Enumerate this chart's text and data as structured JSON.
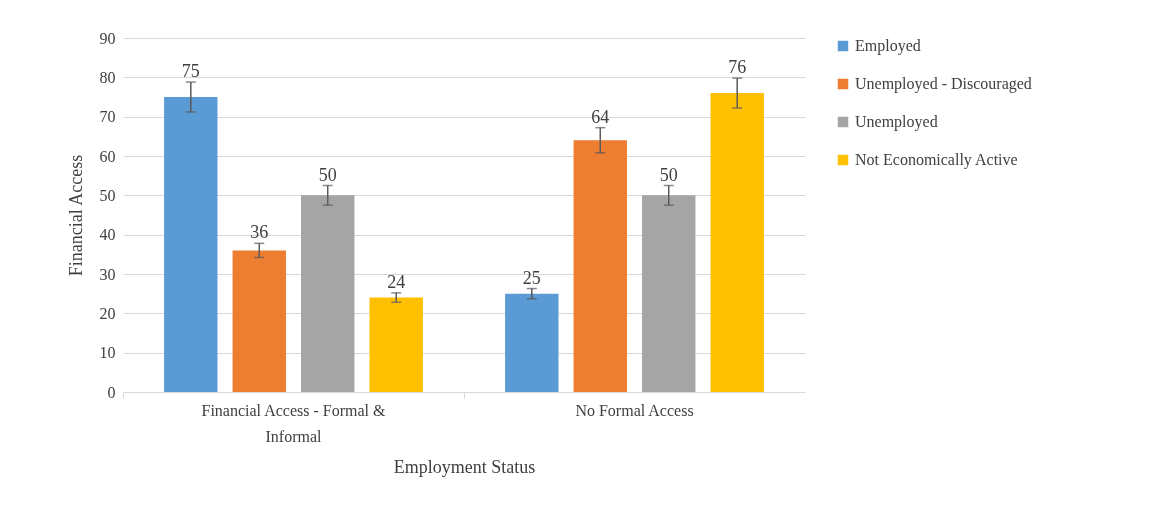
{
  "chart_data": {
    "type": "bar",
    "xlabel": "Employment Status",
    "ylabel": "Financial Access",
    "categories": [
      "Financial Access - Formal & Informal",
      "No Formal Access"
    ],
    "series": [
      {
        "name": "Employed",
        "color": "#5b9bd5",
        "values": [
          75,
          25
        ],
        "errors": [
          3.8,
          1.3
        ]
      },
      {
        "name": "Unemployed - Discouraged",
        "color": "#ed7d31",
        "values": [
          36,
          64
        ],
        "errors": [
          1.8,
          3.2
        ]
      },
      {
        "name": "Unemployed",
        "color": "#a5a5a5",
        "values": [
          50,
          50
        ],
        "errors": [
          2.5,
          2.5
        ]
      },
      {
        "name": "Not Economically Active",
        "color": "#ffc000",
        "values": [
          24,
          76
        ],
        "errors": [
          1.2,
          3.8
        ]
      }
    ],
    "ylim": [
      0,
      90
    ],
    "yticks": [
      0,
      10,
      20,
      30,
      40,
      50,
      60,
      70,
      80,
      90
    ],
    "grid": "y",
    "legend": "right",
    "data_labels": true
  }
}
